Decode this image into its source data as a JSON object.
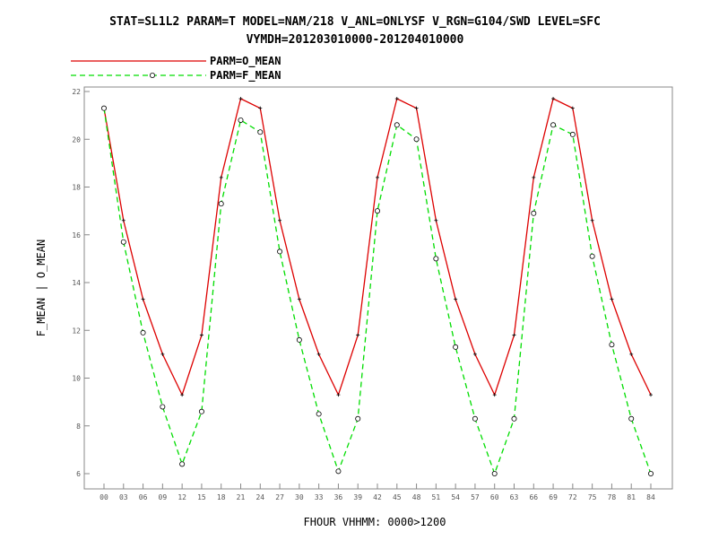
{
  "chart_data": {
    "type": "line",
    "title": "STAT=SL1L2 PARAM=T MODEL=NAM/218 V_ANL=ONLYSF V_RGN=G104/SWD LEVEL=SFC",
    "subtitle": "VYMDH=201203010000-201204010000",
    "xlabel": "FHOUR VHHMM: 0000>1200",
    "ylabel": "F_MEAN | O_MEAN",
    "x": [
      0,
      3,
      6,
      9,
      12,
      15,
      18,
      21,
      24,
      27,
      30,
      33,
      36,
      39,
      42,
      45,
      48,
      51,
      54,
      57,
      60,
      63,
      66,
      69,
      72,
      75,
      78,
      81,
      84
    ],
    "x_tick_labels": [
      "00",
      "03",
      "06",
      "09",
      "12",
      "15",
      "18",
      "21",
      "24",
      "27",
      "30",
      "33",
      "36",
      "39",
      "42",
      "45",
      "48",
      "51",
      "54",
      "57",
      "60",
      "63",
      "66",
      "69",
      "72",
      "75",
      "78",
      "81",
      "84"
    ],
    "ylim": [
      5.3,
      22
    ],
    "yticks": [
      6,
      8,
      10,
      12,
      14,
      16,
      18,
      20,
      22
    ],
    "legend_position": "top-left",
    "series": [
      {
        "name": "PARM=O_MEAN",
        "color": "#dd0000",
        "style": "solid",
        "marker": "plus",
        "values": [
          21.3,
          16.6,
          13.3,
          11.0,
          9.3,
          11.8,
          18.4,
          21.7,
          21.3,
          16.6,
          13.3,
          11.0,
          9.3,
          11.8,
          18.4,
          21.7,
          21.3,
          16.6,
          13.3,
          11.0,
          9.3,
          11.8,
          18.4,
          21.7,
          21.3,
          16.6,
          13.3,
          11.0,
          9.3
        ]
      },
      {
        "name": "PARM=F_MEAN",
        "color": "#00dd00",
        "style": "dashed",
        "marker": "circle",
        "values": [
          21.3,
          15.7,
          11.9,
          8.8,
          6.4,
          8.6,
          17.3,
          20.8,
          20.3,
          15.3,
          11.6,
          8.5,
          6.1,
          8.3,
          17.0,
          20.6,
          20.0,
          15.0,
          11.3,
          8.3,
          6.0,
          8.3,
          16.9,
          20.6,
          20.2,
          15.1,
          11.4,
          8.3,
          6.0
        ]
      }
    ]
  }
}
